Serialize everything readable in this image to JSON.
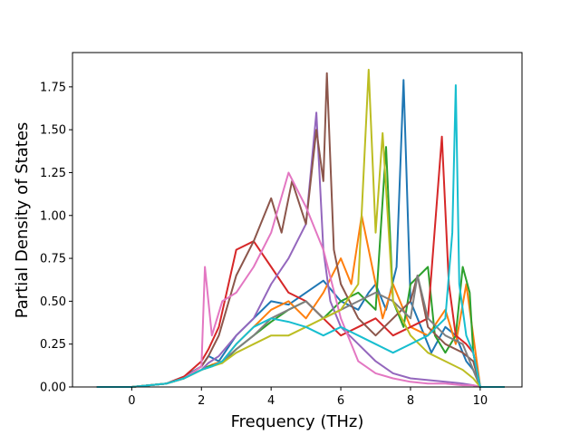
{
  "chart_data": {
    "type": "line",
    "xlabel": "Frequency (THz)",
    "ylabel": "Partial Density of States",
    "xlim": [
      -1.7,
      11.2
    ],
    "ylim": [
      0,
      1.95
    ],
    "xticks": [
      0,
      2,
      4,
      6,
      8,
      10
    ],
    "xtick_labels": [
      "0",
      "2",
      "4",
      "6",
      "8",
      "10"
    ],
    "yticks": [
      0,
      0.25,
      0.5,
      0.75,
      1.0,
      1.25,
      1.5,
      1.75
    ],
    "ytick_labels": [
      "0.00",
      "0.25",
      "0.50",
      "0.75",
      "1.00",
      "1.25",
      "1.50",
      "1.75"
    ],
    "grid": false,
    "legend": "none",
    "series": [
      {
        "color": "#1f77b4",
        "x": [
          -1,
          0,
          1,
          1.5,
          2,
          2.2,
          2.5,
          3,
          3.5,
          4,
          4.5,
          5,
          5.5,
          6,
          6.5,
          6.8,
          7,
          7.3,
          7.6,
          7.8,
          8,
          8.3,
          8.6,
          9,
          9.3,
          9.6,
          9.8,
          10,
          10.7
        ],
        "y": [
          0,
          0,
          0.02,
          0.06,
          0.12,
          0.18,
          0.15,
          0.3,
          0.4,
          0.5,
          0.48,
          0.55,
          0.62,
          0.5,
          0.45,
          0.55,
          0.6,
          0.45,
          0.7,
          1.79,
          0.5,
          0.35,
          0.2,
          0.35,
          0.3,
          0.15,
          0.1,
          0,
          0
        ]
      },
      {
        "color": "#ff7f0e",
        "x": [
          -1,
          0,
          1,
          1.5,
          2,
          2.3,
          2.6,
          3,
          3.5,
          4,
          4.5,
          5,
          5.5,
          6,
          6.3,
          6.6,
          6.9,
          7.2,
          7.5,
          8,
          8.5,
          9,
          9.3,
          9.6,
          9.8,
          10,
          10.7
        ],
        "y": [
          0,
          0,
          0.02,
          0.05,
          0.1,
          0.13,
          0.15,
          0.25,
          0.35,
          0.45,
          0.5,
          0.4,
          0.55,
          0.75,
          0.6,
          1.0,
          0.7,
          0.4,
          0.6,
          0.35,
          0.3,
          0.45,
          0.25,
          0.6,
          0.3,
          0,
          0
        ]
      },
      {
        "color": "#2ca02c",
        "x": [
          -1,
          0,
          1,
          1.5,
          2,
          2.2,
          2.6,
          3,
          3.5,
          4,
          4.5,
          5,
          5.5,
          6,
          6.5,
          7,
          7.3,
          7.5,
          7.8,
          8,
          8.5,
          8.7,
          9,
          9.3,
          9.5,
          9.7,
          9.8,
          10,
          10.7
        ],
        "y": [
          0,
          0,
          0.02,
          0.05,
          0.1,
          0.12,
          0.14,
          0.22,
          0.3,
          0.38,
          0.45,
          0.5,
          0.4,
          0.5,
          0.55,
          0.45,
          1.4,
          0.5,
          0.35,
          0.6,
          0.7,
          0.3,
          0.2,
          0.3,
          0.7,
          0.55,
          0.2,
          0,
          0
        ]
      },
      {
        "color": "#d62728",
        "x": [
          -1,
          0,
          1,
          1.5,
          2,
          2.2,
          2.5,
          3,
          3.5,
          4,
          4.5,
          5,
          5.5,
          6,
          6.5,
          7,
          7.5,
          8,
          8.5,
          8.9,
          9.1,
          9.3,
          9.6,
          9.8,
          10,
          10.7
        ],
        "y": [
          0,
          0,
          0.02,
          0.06,
          0.15,
          0.22,
          0.35,
          0.8,
          0.85,
          0.7,
          0.55,
          0.5,
          0.4,
          0.3,
          0.35,
          0.4,
          0.3,
          0.35,
          0.4,
          1.46,
          0.6,
          0.3,
          0.25,
          0.2,
          0,
          0
        ]
      },
      {
        "color": "#9467bd",
        "x": [
          -1,
          0,
          1,
          1.5,
          2,
          2.2,
          2.5,
          3,
          3.5,
          4,
          4.5,
          5,
          5.3,
          5.5,
          5.7,
          6,
          6.5,
          7,
          7.5,
          8,
          8.5,
          9,
          9.5,
          9.8,
          10,
          10.7
        ],
        "y": [
          0,
          0,
          0.02,
          0.05,
          0.1,
          0.14,
          0.18,
          0.3,
          0.4,
          0.6,
          0.75,
          0.95,
          1.6,
          0.8,
          0.5,
          0.35,
          0.25,
          0.15,
          0.08,
          0.05,
          0.04,
          0.03,
          0.02,
          0.01,
          0,
          0
        ]
      },
      {
        "color": "#8c564b",
        "x": [
          -1,
          0,
          1,
          1.5,
          2,
          2.2,
          2.5,
          3,
          3.5,
          4,
          4.3,
          4.6,
          5,
          5.3,
          5.5,
          5.6,
          5.8,
          6,
          6.5,
          7,
          7.5,
          8,
          8.2,
          8.5,
          9,
          9.5,
          9.8,
          10,
          10.7
        ],
        "y": [
          0,
          0,
          0.02,
          0.05,
          0.12,
          0.18,
          0.3,
          0.65,
          0.85,
          1.1,
          0.9,
          1.2,
          0.95,
          1.5,
          1.2,
          1.83,
          0.8,
          0.6,
          0.4,
          0.3,
          0.4,
          0.5,
          0.65,
          0.35,
          0.25,
          0.2,
          0.15,
          0,
          0
        ]
      },
      {
        "color": "#e377c2",
        "x": [
          -1,
          0,
          1,
          1.5,
          2,
          2.1,
          2.3,
          2.6,
          3,
          3.5,
          4,
          4.5,
          5,
          5.5,
          6,
          6.5,
          7,
          7.5,
          8,
          8.5,
          9,
          9.5,
          9.8,
          10,
          10.7
        ],
        "y": [
          0,
          0,
          0.02,
          0.05,
          0.12,
          0.7,
          0.3,
          0.5,
          0.55,
          0.7,
          0.9,
          1.25,
          1.05,
          0.8,
          0.4,
          0.15,
          0.08,
          0.05,
          0.03,
          0.02,
          0.02,
          0.01,
          0.01,
          0,
          0
        ]
      },
      {
        "color": "#7f7f7f",
        "x": [
          -1,
          0,
          1,
          1.5,
          2,
          2.3,
          2.6,
          3,
          3.5,
          4,
          4.5,
          5,
          5.5,
          6,
          6.5,
          7,
          7.5,
          8,
          8.2,
          8.5,
          9,
          9.5,
          9.8,
          10,
          10.7
        ],
        "y": [
          0,
          0,
          0.02,
          0.05,
          0.1,
          0.12,
          0.15,
          0.22,
          0.3,
          0.4,
          0.45,
          0.5,
          0.4,
          0.45,
          0.5,
          0.55,
          0.5,
          0.4,
          0.65,
          0.4,
          0.3,
          0.25,
          0.1,
          0,
          0
        ]
      },
      {
        "color": "#bcbd22",
        "x": [
          -1,
          0,
          1,
          1.5,
          2,
          2.3,
          2.6,
          3,
          3.5,
          4,
          4.5,
          5,
          5.5,
          6,
          6.5,
          6.8,
          7,
          7.2,
          7.5,
          8,
          8.5,
          9,
          9.5,
          9.8,
          10,
          10.7
        ],
        "y": [
          0,
          0,
          0.02,
          0.05,
          0.1,
          0.12,
          0.14,
          0.2,
          0.25,
          0.3,
          0.3,
          0.35,
          0.4,
          0.45,
          0.6,
          1.85,
          0.9,
          1.48,
          0.5,
          0.3,
          0.2,
          0.15,
          0.1,
          0.05,
          0,
          0
        ]
      },
      {
        "color": "#17becf",
        "x": [
          -1,
          0,
          1,
          1.5,
          2,
          2.3,
          2.6,
          3,
          3.5,
          4,
          4.5,
          5,
          5.5,
          6,
          6.5,
          7,
          7.5,
          8,
          8.5,
          9,
          9.2,
          9.3,
          9.4,
          9.6,
          9.8,
          10,
          10.7
        ],
        "y": [
          0,
          0,
          0.02,
          0.05,
          0.1,
          0.12,
          0.15,
          0.25,
          0.35,
          0.4,
          0.38,
          0.35,
          0.3,
          0.35,
          0.3,
          0.25,
          0.2,
          0.25,
          0.3,
          0.4,
          0.9,
          1.76,
          0.6,
          0.3,
          0.2,
          0,
          0
        ]
      }
    ]
  }
}
